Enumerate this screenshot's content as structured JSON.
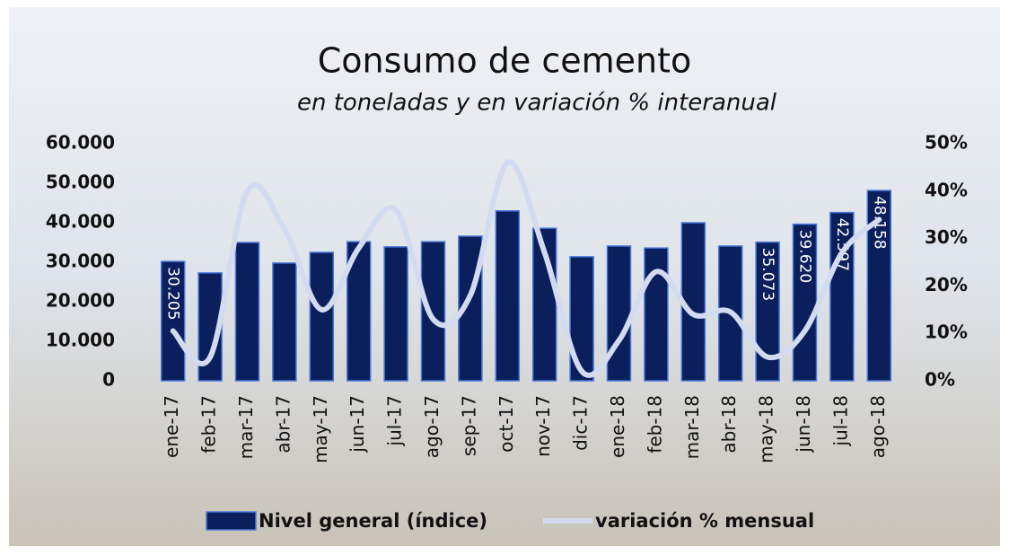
{
  "chart_data": {
    "type": "bar_line",
    "title": "Consumo de cemento",
    "subtitle": "en toneladas y en variación % interanual",
    "categories": [
      "ene-17",
      "feb-17",
      "mar-17",
      "abr-17",
      "may-17",
      "jun-17",
      "jul-17",
      "ago-17",
      "sep-17",
      "oct-17",
      "nov-17",
      "dic-17",
      "ene-18",
      "feb-18",
      "mar-18",
      "abr-18",
      "may-18",
      "jun-18",
      "jul-18",
      "ago-18"
    ],
    "series": [
      {
        "name": "Nivel general (índice)",
        "color": "#0b1f5c",
        "type": "bar",
        "values": [
          30205,
          27300,
          35000,
          29800,
          32500,
          35200,
          33900,
          35200,
          36600,
          43000,
          38600,
          31400,
          34100,
          33600,
          40000,
          34100,
          35073,
          39620,
          42597,
          48158
        ],
        "value_labels": [
          "30.205",
          null,
          null,
          null,
          null,
          null,
          null,
          null,
          null,
          null,
          null,
          null,
          null,
          null,
          null,
          null,
          "35.073",
          "39.620",
          "42.597",
          "48.158"
        ]
      },
      {
        "name": "variación % mensual",
        "color": "#d3dbf0",
        "type": "line",
        "axis": "y2",
        "values": [
          10.5,
          5,
          40,
          32,
          15,
          28,
          36,
          13,
          18,
          46,
          27,
          2,
          8.5,
          23,
          14,
          14.5,
          5,
          10.5,
          27,
          34
        ]
      }
    ],
    "ylim": [
      0,
      60000
    ],
    "yticks": [
      0,
      {
        "value": 10000,
        "label": "10.000"
      },
      {
        "value": 20000,
        "label": "20.000"
      },
      {
        "value": 30000,
        "label": "30.000"
      },
      {
        "value": 40000,
        "label": "40.000"
      },
      {
        "value": 50000,
        "label": "50.000"
      },
      {
        "value": 60000,
        "label": "60.000"
      }
    ],
    "y2lim": [
      0,
      50
    ],
    "y2ticks": [
      {
        "value": 0,
        "label": "0%"
      },
      {
        "value": 10,
        "label": "10%"
      },
      {
        "value": 20,
        "label": "20%"
      },
      {
        "value": 30,
        "label": "30%"
      },
      {
        "value": 40,
        "label": "40%"
      },
      {
        "value": 50,
        "label": "50%"
      }
    ],
    "legend": "bottom"
  }
}
